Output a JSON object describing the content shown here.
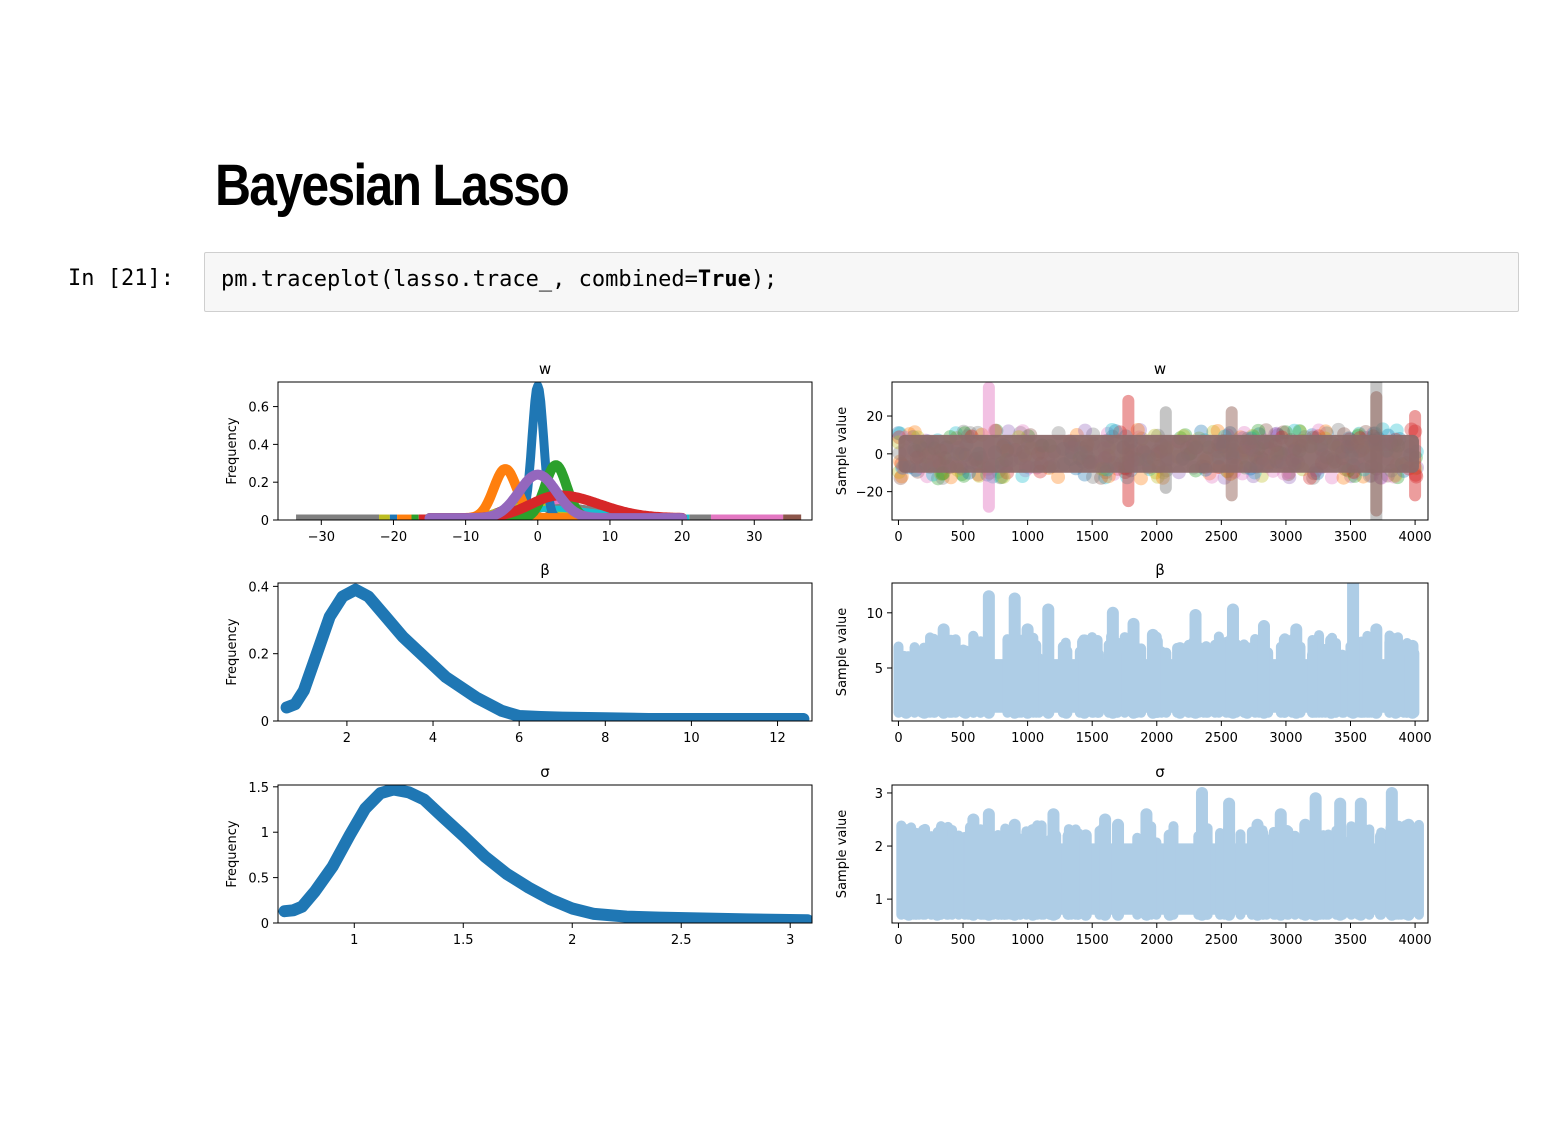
{
  "notebook": {
    "heading": "Bayesian Lasso",
    "prompt": "In [21]:",
    "code": {
      "prefix": "pm.traceplot(lasso.trace_, combined=",
      "keyword": "True",
      "suffix": ");"
    }
  },
  "chart_data": [
    {
      "type": "line",
      "title": "w",
      "ylabel": "Frequency",
      "xlim": [
        -36,
        38
      ],
      "ylim": [
        0,
        0.73
      ],
      "xticks": [
        -30,
        -20,
        -10,
        0,
        10,
        20,
        30
      ],
      "yticks": [
        0.0,
        0.2,
        0.4,
        0.6
      ],
      "series_colors": [
        "#1f77b4",
        "#ff7f0e",
        "#2ca02c",
        "#d62728",
        "#9467bd",
        "#8c564b",
        "#e377c2",
        "#7f7f7f",
        "#bcbd22",
        "#17becf"
      ],
      "series": [
        {
          "peak_x": 0,
          "peak_y": 0.7,
          "width": 0.8,
          "color": "#1f77b4"
        },
        {
          "peak_x": -4.5,
          "peak_y": 0.26,
          "width": 1.6,
          "color": "#ff7f0e"
        },
        {
          "peak_x": 2.5,
          "peak_y": 0.28,
          "width": 1.5,
          "color": "#2ca02c"
        },
        {
          "peak_x": 3,
          "peak_y": 0.12,
          "width": 4.0,
          "color": "#d62728"
        },
        {
          "peak_x": 0,
          "peak_y": 0.23,
          "width": 2.6,
          "color": "#9467bd"
        }
      ]
    },
    {
      "type": "line",
      "title": "w",
      "ylabel": "Sample value",
      "xlim": [
        -50,
        4100
      ],
      "ylim": [
        -35,
        38
      ],
      "xticks": [
        0,
        500,
        1000,
        1500,
        2000,
        2500,
        3000,
        3500,
        4000
      ],
      "yticks": [
        20,
        0,
        -20
      ],
      "band": [
        -10,
        10
      ]
    },
    {
      "type": "line",
      "title": "β",
      "ylabel": "Frequency",
      "xlim": [
        0.4,
        12.8
      ],
      "ylim": [
        0,
        0.41
      ],
      "xticks": [
        2,
        4,
        6,
        8,
        10,
        12
      ],
      "yticks": [
        0.0,
        0.2,
        0.4
      ],
      "x": [
        0.6,
        0.8,
        1.0,
        1.3,
        1.6,
        1.9,
        2.2,
        2.5,
        2.9,
        3.3,
        3.8,
        4.3,
        5.0,
        5.6,
        6.0,
        6.5,
        7.0,
        8.0,
        9.0,
        10.0,
        11.0,
        12.6
      ],
      "y": [
        0.04,
        0.05,
        0.09,
        0.2,
        0.31,
        0.37,
        0.39,
        0.37,
        0.31,
        0.25,
        0.19,
        0.13,
        0.07,
        0.03,
        0.015,
        0.012,
        0.01,
        0.008,
        0.006,
        0.006,
        0.006,
        0.006
      ],
      "color": "#1f77b4"
    },
    {
      "type": "line",
      "title": "β",
      "ylabel": "Sample value",
      "xlim": [
        -50,
        4100
      ],
      "ylim": [
        0.2,
        12.7
      ],
      "xticks": [
        0,
        500,
        1000,
        1500,
        2000,
        2500,
        3000,
        3500,
        4000
      ],
      "yticks": [
        10,
        5
      ],
      "band_color": "#aecde6",
      "spikes": [
        [
          60,
          5.5
        ],
        [
          200,
          6.5
        ],
        [
          350,
          8.5
        ],
        [
          520,
          6.5
        ],
        [
          700,
          11.5
        ],
        [
          900,
          11.3
        ],
        [
          1000,
          8.5
        ],
        [
          1160,
          10.3
        ],
        [
          1300,
          6.5
        ],
        [
          1440,
          7.5
        ],
        [
          1660,
          10.0
        ],
        [
          1820,
          9.0
        ],
        [
          1970,
          8.0
        ],
        [
          2180,
          6.8
        ],
        [
          2300,
          9.8
        ],
        [
          2590,
          10.3
        ],
        [
          2700,
          6.8
        ],
        [
          2830,
          8.8
        ],
        [
          3080,
          8.5
        ],
        [
          3350,
          7.5
        ],
        [
          3520,
          12.7
        ],
        [
          3700,
          8.5
        ],
        [
          3850,
          7.5
        ],
        [
          3980,
          7.0
        ]
      ]
    },
    {
      "type": "line",
      "title": "σ",
      "ylabel": "Frequency",
      "xlim": [
        0.65,
        3.1
      ],
      "ylim": [
        0,
        1.52
      ],
      "xticks": [
        1.0,
        1.5,
        2.0,
        2.5,
        3.0
      ],
      "yticks": [
        0.0,
        0.5,
        1.0,
        1.5
      ],
      "x": [
        0.68,
        0.72,
        0.76,
        0.82,
        0.9,
        0.98,
        1.05,
        1.12,
        1.18,
        1.25,
        1.32,
        1.4,
        1.5,
        1.6,
        1.7,
        1.8,
        1.9,
        2.0,
        2.1,
        2.25,
        2.4,
        2.6,
        2.8,
        3.08
      ],
      "y": [
        0.13,
        0.14,
        0.18,
        0.35,
        0.62,
        0.97,
        1.26,
        1.43,
        1.47,
        1.44,
        1.36,
        1.18,
        0.96,
        0.73,
        0.54,
        0.39,
        0.26,
        0.16,
        0.1,
        0.07,
        0.06,
        0.05,
        0.04,
        0.03
      ],
      "color": "#1f77b4"
    },
    {
      "type": "line",
      "title": "σ",
      "ylabel": "Sample value",
      "xlim": [
        -50,
        4100
      ],
      "ylim": [
        0.55,
        3.15
      ],
      "xticks": [
        0,
        500,
        1000,
        1500,
        2000,
        2500,
        3000,
        3500,
        4000
      ],
      "yticks": [
        3,
        2,
        1
      ],
      "band_color": "#aecde6",
      "spikes": [
        [
          80,
          2.2
        ],
        [
          300,
          2.0
        ],
        [
          580,
          2.5
        ],
        [
          700,
          2.6
        ],
        [
          900,
          2.4
        ],
        [
          1040,
          2.3
        ],
        [
          1200,
          2.6
        ],
        [
          1450,
          2.2
        ],
        [
          1600,
          2.5
        ],
        [
          1700,
          2.4
        ],
        [
          1920,
          2.6
        ],
        [
          2100,
          2.2
        ],
        [
          2350,
          3.0
        ],
        [
          2560,
          2.8
        ],
        [
          2780,
          2.4
        ],
        [
          2960,
          2.6
        ],
        [
          3150,
          2.4
        ],
        [
          3230,
          2.9
        ],
        [
          3420,
          2.8
        ],
        [
          3580,
          2.8
        ],
        [
          3820,
          3.0
        ],
        [
          3950,
          2.4
        ]
      ]
    }
  ]
}
